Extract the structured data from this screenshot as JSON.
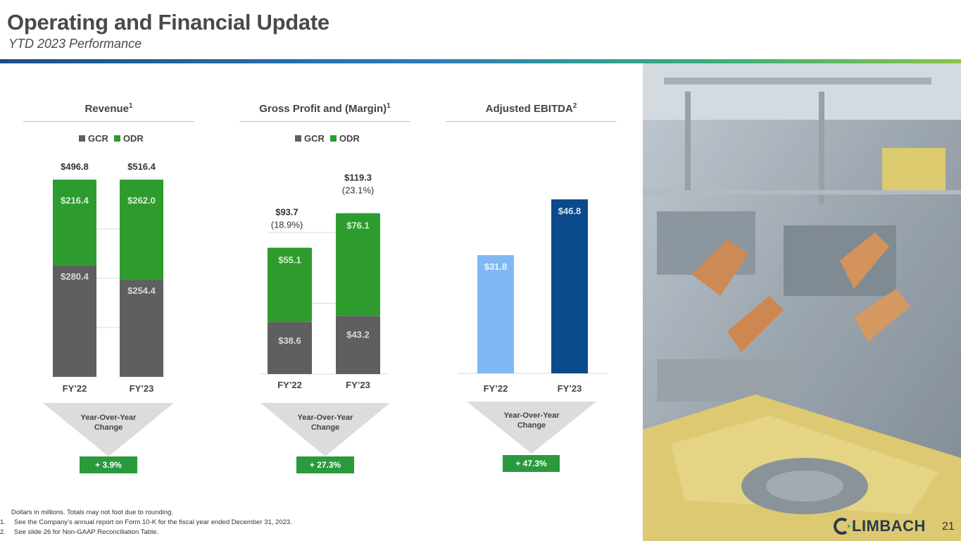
{
  "header": {
    "title": "Operating and Financial Update",
    "subtitle": "YTD 2023 Performance"
  },
  "colors": {
    "gcr": "#5f5f5f",
    "odr": "#2e9b2e",
    "ebitda_fy22": "#7fb8f5",
    "ebitda_fy23": "#0b4a8b",
    "badge": "#2a9a3c"
  },
  "legend": {
    "gcr": "GCR",
    "odr": "ODR"
  },
  "chart_data": [
    {
      "type": "bar",
      "stacked": true,
      "title": "Revenue",
      "title_sup": "1",
      "categories": [
        "FY’22",
        "FY’23"
      ],
      "series": [
        {
          "name": "GCR",
          "values": [
            280.4,
            254.4
          ],
          "labels": [
            "$280.4",
            "$254.4"
          ]
        },
        {
          "name": "ODR",
          "values": [
            216.4,
            262.0
          ],
          "labels": [
            "$216.4",
            "$262.0"
          ]
        }
      ],
      "totals": [
        "$496.8",
        "$516.4"
      ],
      "ylim": [
        0,
        516.4
      ],
      "grid": true,
      "legend": "top"
    },
    {
      "type": "bar",
      "stacked": true,
      "title": "Gross Profit and (Margin)",
      "title_sup": "1",
      "categories": [
        "FY’22",
        "FY’23"
      ],
      "series": [
        {
          "name": "GCR",
          "values": [
            38.6,
            43.2
          ],
          "labels": [
            "$38.6",
            "$43.2"
          ]
        },
        {
          "name": "ODR",
          "values": [
            55.1,
            76.1
          ],
          "labels": [
            "$55.1",
            "$76.1"
          ]
        }
      ],
      "totals": [
        "$93.7",
        "$119.3"
      ],
      "margins": [
        "(18.9%)",
        "(23.1%)"
      ],
      "ylim": [
        0,
        140
      ],
      "grid": true,
      "legend": "top"
    },
    {
      "type": "bar",
      "title": "Adjusted EBITDA",
      "title_sup": "2",
      "categories": [
        "FY’22",
        "FY’23"
      ],
      "values": [
        31.8,
        46.8
      ],
      "labels": [
        "$31.8",
        "$46.8"
      ],
      "ylim": [
        0,
        55
      ],
      "grid": false
    }
  ],
  "yoy": {
    "label_line1": "Year-Over-Year",
    "label_line2": "Change",
    "revenue": "+ 3.9%",
    "gross_profit": "+ 27.3%",
    "ebitda": "+ 47.3%"
  },
  "footnotes": {
    "note": "Dollars in millions. Totals may not foot due to rounding.",
    "n1_num": "1.",
    "n1": "See the Company’s annual report on Form 10-K for the fiscal year ended December 31, 2023.",
    "n2_num": "2.",
    "n2": "See slide 26 for Non-GAAP Reconciliation Table."
  },
  "logo": {
    "text": "LIMBACH"
  },
  "page_number": "21"
}
